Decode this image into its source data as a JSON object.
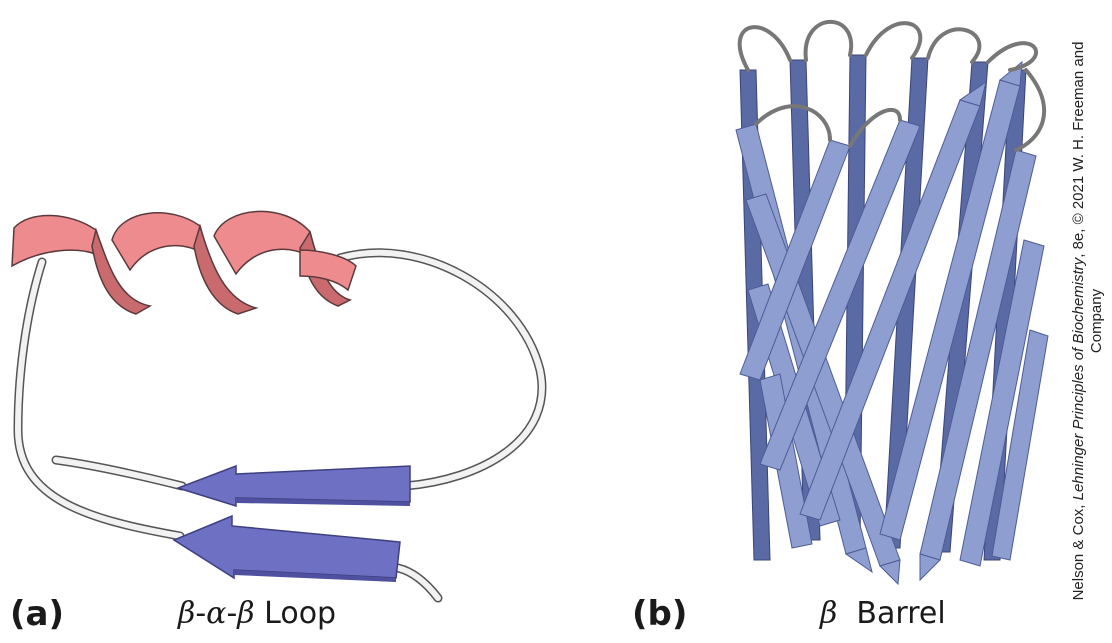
{
  "panels": [
    {
      "letter": "(a)",
      "caption_beta1": "β",
      "caption_dash1": "-",
      "caption_alpha": "α",
      "caption_dash2": "-",
      "caption_beta2": "β",
      "caption_word": "Loop"
    },
    {
      "letter": "(b)",
      "caption_beta": "β",
      "caption_word": "Barrel"
    }
  ],
  "credit": {
    "line1_pre": "Nelson & Cox, ",
    "line1_title": "Lehninger Principles of Biochemistry",
    "line1_post": ", 8e, © 2021 W. H. Freeman and",
    "line2": "Company"
  },
  "colors": {
    "helix": "#ee8b8e",
    "helix_dark": "#c96a6e",
    "strand": "#6e70c4",
    "strand_dark": "#4f51a0",
    "coil": "#f2f2f2",
    "barrel_strand": "#8e9ed1",
    "barrel_strand_dark": "#5a6aa5",
    "barrel_loop": "#777777"
  }
}
